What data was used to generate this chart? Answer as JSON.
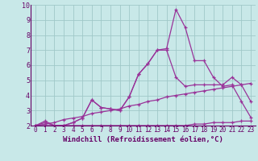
{
  "background_color": "#c8e8e8",
  "grid_color": "#a0c8c8",
  "line_color": "#993399",
  "xlabel": "Windchill (Refroidissement éolien,°C)",
  "xlabel_fontsize": 6.5,
  "xtick_fontsize": 5.5,
  "ytick_fontsize": 6,
  "xlim": [
    -0.5,
    23.5
  ],
  "ylim": [
    2,
    10
  ],
  "xticks": [
    0,
    1,
    2,
    3,
    4,
    5,
    6,
    7,
    8,
    9,
    10,
    11,
    12,
    13,
    14,
    15,
    16,
    17,
    18,
    19,
    20,
    21,
    22,
    23
  ],
  "yticks": [
    2,
    3,
    4,
    5,
    6,
    7,
    8,
    9,
    10
  ],
  "curves": [
    {
      "x": [
        0,
        1,
        2,
        3,
        4,
        5,
        6,
        7,
        8,
        9,
        10,
        11,
        12,
        13,
        14,
        15,
        16,
        17,
        18,
        19,
        20,
        21,
        22,
        23
      ],
      "y": [
        2.0,
        2.0,
        2.0,
        2.0,
        2.0,
        2.0,
        2.0,
        2.0,
        2.0,
        2.0,
        2.0,
        2.0,
        2.0,
        2.0,
        2.0,
        2.0,
        2.0,
        2.1,
        2.1,
        2.2,
        2.2,
        2.2,
        2.3,
        2.3
      ]
    },
    {
      "x": [
        0,
        1,
        2,
        3,
        4,
        5,
        6,
        7,
        8,
        9,
        10,
        11,
        12,
        13,
        14,
        15,
        16,
        17,
        18,
        19,
        20,
        21,
        22,
        23
      ],
      "y": [
        2.0,
        2.1,
        2.2,
        2.4,
        2.5,
        2.6,
        2.8,
        2.9,
        3.0,
        3.1,
        3.3,
        3.4,
        3.6,
        3.7,
        3.9,
        4.0,
        4.1,
        4.2,
        4.3,
        4.4,
        4.5,
        4.6,
        4.7,
        4.8
      ]
    },
    {
      "x": [
        0,
        1,
        2,
        3,
        4,
        5,
        6,
        7,
        8,
        9,
        10,
        11,
        12,
        13,
        14,
        15,
        16,
        17,
        18,
        19,
        20,
        21,
        22,
        23
      ],
      "y": [
        2.0,
        2.2,
        2.0,
        2.0,
        2.2,
        2.5,
        3.7,
        3.2,
        3.1,
        3.0,
        3.9,
        5.4,
        6.1,
        7.0,
        7.0,
        5.2,
        4.6,
        4.7,
        4.7,
        4.7,
        4.7,
        5.2,
        4.7,
        3.6
      ]
    },
    {
      "x": [
        0,
        1,
        2,
        3,
        4,
        5,
        6,
        7,
        8,
        9,
        10,
        11,
        12,
        13,
        14,
        15,
        16,
        17,
        18,
        19,
        20,
        21,
        22,
        23
      ],
      "y": [
        2.0,
        2.3,
        2.0,
        2.0,
        2.2,
        2.5,
        3.7,
        3.2,
        3.1,
        3.0,
        3.9,
        5.4,
        6.1,
        7.0,
        7.1,
        9.7,
        8.5,
        6.3,
        6.3,
        5.2,
        4.6,
        4.7,
        3.6,
        2.55
      ]
    }
  ]
}
